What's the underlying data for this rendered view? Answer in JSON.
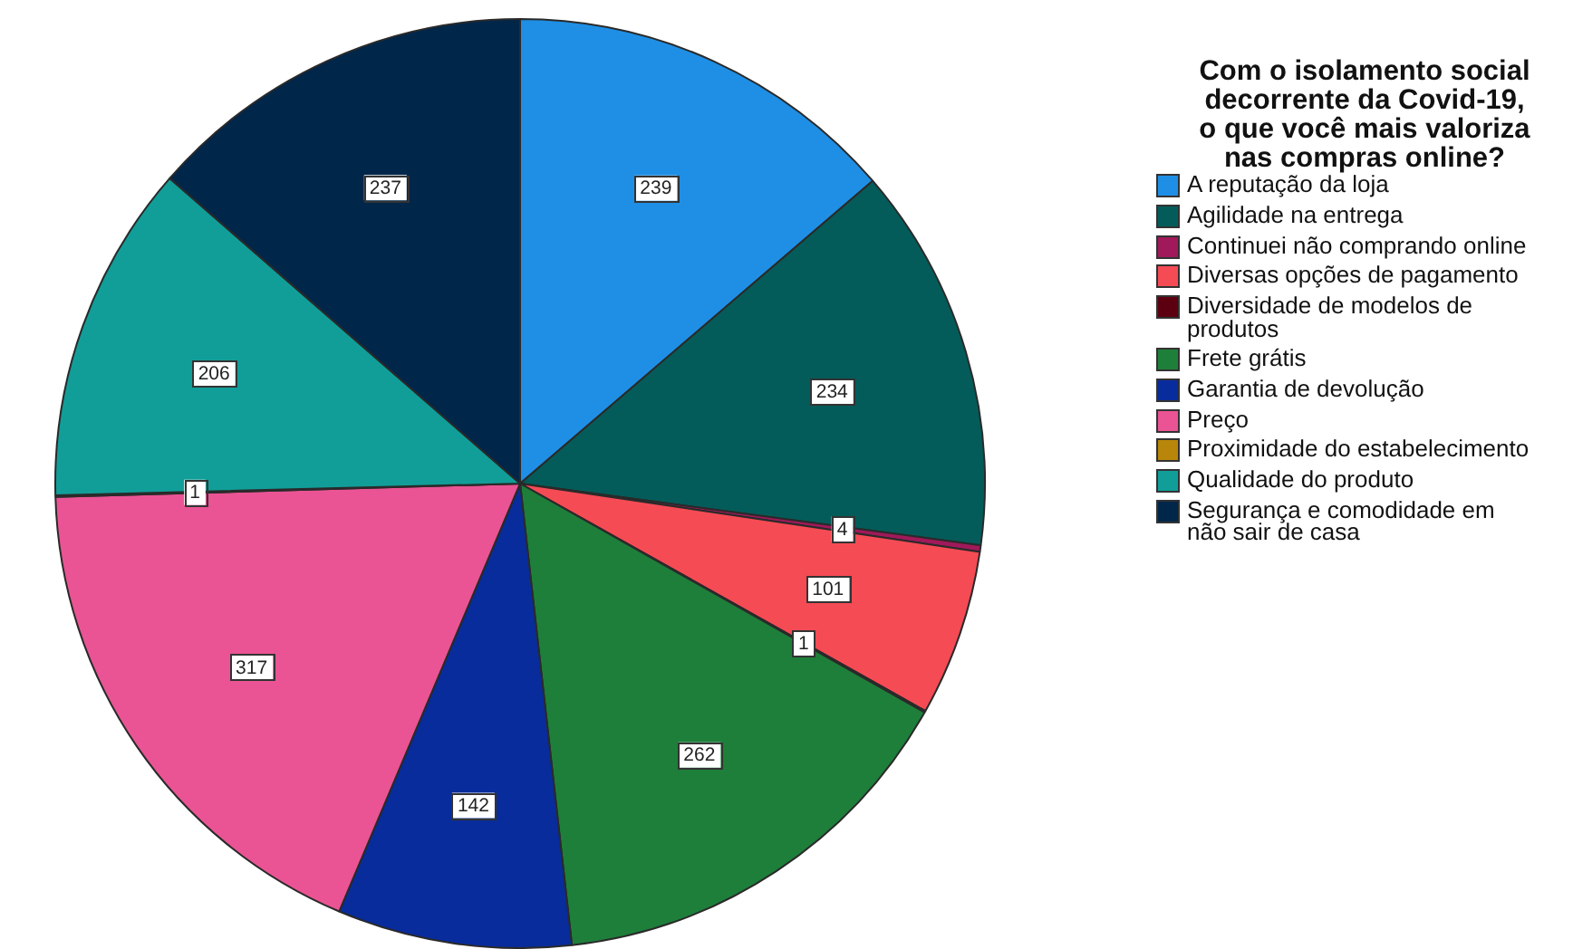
{
  "chart_data": {
    "type": "pie",
    "legend_title": "Com o isolamento social decorrente da Covid-19, o que você mais valoriza nas compras online?",
    "categories": [
      "A reputação da loja",
      "Agilidade na entrega",
      "Continuei não comprando online",
      "Diversas opções de pagamento",
      "Diversidade de modelos de produtos",
      "Frete grátis",
      "Garantia de devolução",
      "Preço",
      "Proximidade do estabelecimento",
      "Qualidade do produto",
      "Segurança e comodidade em não sair de casa"
    ],
    "values": [
      239,
      234,
      4,
      101,
      1,
      262,
      142,
      317,
      1,
      206,
      237
    ],
    "colors": [
      "#1f8fe5",
      "#045c5a",
      "#a0195a",
      "#f54b55",
      "#5c0011",
      "#1e7f3a",
      "#082c9c",
      "#ea5494",
      "#b8860a",
      "#119e99",
      "#00264a"
    ],
    "data_labels": true,
    "legend": "right"
  }
}
